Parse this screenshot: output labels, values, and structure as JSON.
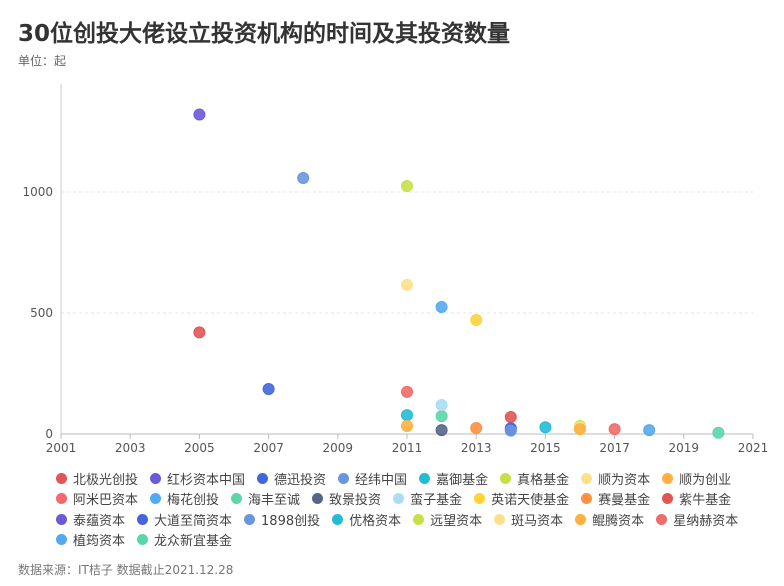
{
  "title": "30位创投大佬设立投资机构的时间及其投资数量",
  "unit": "单位：起",
  "source": "数据来源：IT桔子 数据截止2021.12.28",
  "chart_data": {
    "type": "scatter",
    "title": "30位创投大佬设立投资机构的时间及其投资数量",
    "xlabel": "",
    "ylabel": "单位：起",
    "xlim": [
      2001,
      2021
    ],
    "ylim": [
      0,
      1400
    ],
    "xticks": [
      2001,
      2003,
      2005,
      2007,
      2009,
      2011,
      2013,
      2015,
      2017,
      2019,
      2021
    ],
    "yticks": [
      0,
      500,
      1000
    ],
    "grid": "horizontal-dotted",
    "legend": "bottom",
    "series": [
      {
        "name": "北极光创投",
        "color": "#e05656",
        "x": 2005,
        "y": 420
      },
      {
        "name": "红杉资本中国",
        "color": "#6a5ad8",
        "x": 2005,
        "y": 1320
      },
      {
        "name": "德迅投资",
        "color": "#4466dd",
        "x": 2007,
        "y": 186
      },
      {
        "name": "经纬中国",
        "color": "#6a96de",
        "x": 2008,
        "y": 1058
      },
      {
        "name": "嘉御基金",
        "color": "#22bcd6",
        "x": 2011,
        "y": 78
      },
      {
        "name": "真格基金",
        "color": "#c8e048",
        "x": 2011,
        "y": 1025
      },
      {
        "name": "顺为资本",
        "color": "#ffe08a",
        "x": 2011,
        "y": 616
      },
      {
        "name": "顺为创业",
        "color": "#ffb040",
        "x": 2011,
        "y": 33
      },
      {
        "name": "阿米巴资本",
        "color": "#f26a6a",
        "x": 2011,
        "y": 174
      },
      {
        "name": "梅花创投",
        "color": "#55aaee",
        "x": 2012,
        "y": 525
      },
      {
        "name": "海丰至诚",
        "color": "#5cd6a8",
        "x": 2012,
        "y": 74
      },
      {
        "name": "致景投资",
        "color": "#556688",
        "x": 2012,
        "y": 16
      },
      {
        "name": "蛮子基金",
        "color": "#aaddf5",
        "x": 2012,
        "y": 120
      },
      {
        "name": "英诺天使基金",
        "color": "#ffd23c",
        "x": 2013,
        "y": 471
      },
      {
        "name": "赛曼基金",
        "color": "#ff9040",
        "x": 2013,
        "y": 25
      },
      {
        "name": "紫牛基金",
        "color": "#e05656",
        "x": 2014,
        "y": 70
      },
      {
        "name": "泰蕴资本",
        "color": "#6a5ad8",
        "x": 2014,
        "y": 24
      },
      {
        "name": "大道至简资本",
        "color": "#4466dd",
        "x": 2014,
        "y": 18
      },
      {
        "name": "1898创投",
        "color": "#6a96de",
        "x": 2014,
        "y": 14
      },
      {
        "name": "优格资本",
        "color": "#22bcd6",
        "x": 2015,
        "y": 28
      },
      {
        "name": "远望资本",
        "color": "#c8e048",
        "x": 2016,
        "y": 33
      },
      {
        "name": "斑马资本",
        "color": "#ffe08a",
        "x": 2016,
        "y": 28
      },
      {
        "name": "鲲腾资本",
        "color": "#ffb040",
        "x": 2016,
        "y": 20
      },
      {
        "name": "星纳赫资本",
        "color": "#f26a6a",
        "x": 2017,
        "y": 20
      },
      {
        "name": "植筠资本",
        "color": "#55aaee",
        "x": 2018,
        "y": 16
      },
      {
        "name": "龙众新宜基金",
        "color": "#5cd6a8",
        "x": 2020,
        "y": 5
      }
    ]
  }
}
